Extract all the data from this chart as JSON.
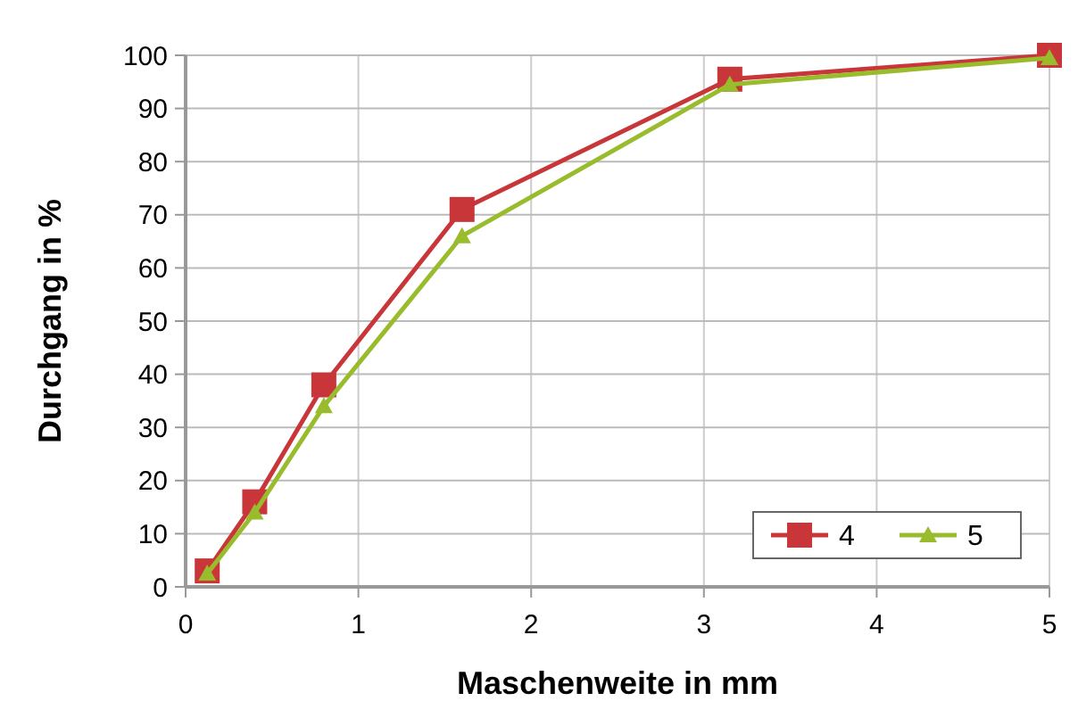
{
  "chart_data": {
    "type": "line",
    "xlabel": "Maschenweite in mm",
    "ylabel": "Durchgang in %",
    "x": [
      0.125,
      0.4,
      0.8,
      1.6,
      3.15,
      5
    ],
    "series": [
      {
        "name": "4",
        "color": "#c8363a",
        "marker": "square",
        "values": [
          3,
          16,
          38,
          71,
          95.5,
          100
        ]
      },
      {
        "name": "5",
        "color": "#98bc2c",
        "marker": "triangle",
        "values": [
          2.5,
          14,
          34,
          66,
          94.5,
          99.5
        ]
      }
    ],
    "xlim": [
      0,
      5
    ],
    "xticks": [
      0,
      1,
      2,
      3,
      4,
      5
    ],
    "ylim": [
      0,
      100
    ],
    "yticks": [
      0,
      10,
      20,
      30,
      40,
      50,
      60,
      70,
      80,
      90,
      100
    ],
    "grid": true,
    "legend": "bottom right"
  }
}
